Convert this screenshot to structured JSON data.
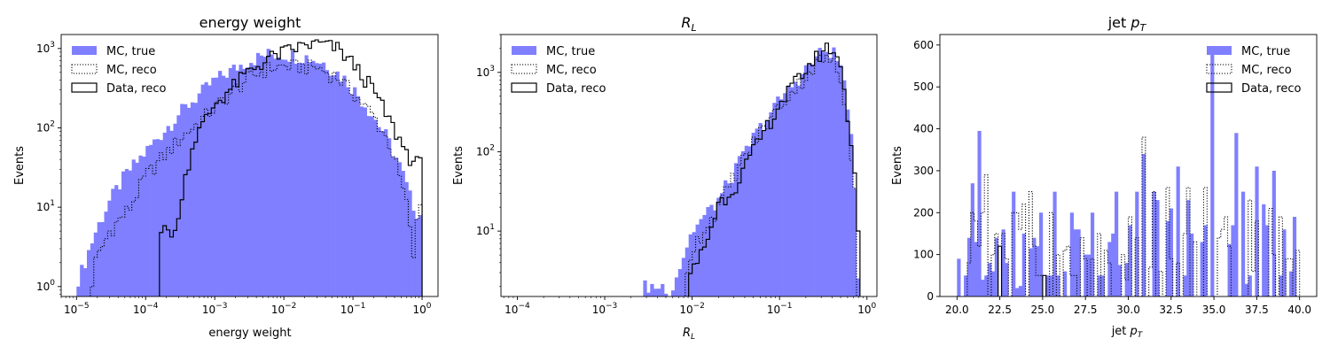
{
  "chart_data": [
    {
      "type": "histogram",
      "title": "energy weight",
      "xlabel": "energy weight",
      "ylabel": "Events",
      "xscale": "log",
      "yscale": "log",
      "xlim": [
        6e-06,
        1.7
      ],
      "ylim": [
        0.75,
        1500
      ],
      "xticks": [
        {
          "v": 1e-05,
          "b": "10",
          "e": "−5"
        },
        {
          "v": 0.0001,
          "b": "10",
          "e": "−4"
        },
        {
          "v": 0.001,
          "b": "10",
          "e": "−3"
        },
        {
          "v": 0.01,
          "b": "10",
          "e": "−2"
        },
        {
          "v": 0.1,
          "b": "10",
          "e": "−1"
        },
        {
          "v": 1,
          "b": "10",
          "e": "0"
        }
      ],
      "yticks": [
        {
          "v": 1,
          "b": "10",
          "e": "0"
        },
        {
          "v": 10,
          "b": "10",
          "e": "1"
        },
        {
          "v": 100,
          "b": "10",
          "e": "2"
        },
        {
          "v": 1000,
          "b": "10",
          "e": "3"
        }
      ],
      "legend": "upper-left",
      "grid": false,
      "bins": {
        "min": 1e-05,
        "max": 1.0,
        "n": 100,
        "scale": "log"
      },
      "series": [
        {
          "name": "MC, true",
          "style": "filled",
          "color": "#7f7fff",
          "anchors": [
            [
              1e-05,
              1
            ],
            [
              1.3e-05,
              2
            ],
            [
              1.9e-05,
              5
            ],
            [
              3e-05,
              12
            ],
            [
              5e-05,
              25
            ],
            [
              0.0001,
              50
            ],
            [
              0.0003,
              150
            ],
            [
              0.001,
              400
            ],
            [
              0.003,
              700
            ],
            [
              0.006,
              850
            ],
            [
              0.01,
              850
            ],
            [
              0.02,
              800
            ],
            [
              0.04,
              650
            ],
            [
              0.08,
              400
            ],
            [
              0.15,
              200
            ],
            [
              0.3,
              80
            ],
            [
              0.5,
              30
            ],
            [
              0.7,
              12
            ],
            [
              0.9,
              8
            ],
            [
              1,
              8
            ]
          ]
        },
        {
          "name": "MC, reco",
          "style": "dotted",
          "color": "#000000",
          "anchors": [
            [
              1.6e-05,
              1.5
            ],
            [
              3e-05,
              5
            ],
            [
              6e-05,
              10
            ],
            [
              0.0001,
              25
            ],
            [
              0.0003,
              70
            ],
            [
              0.001,
              180
            ],
            [
              0.003,
              420
            ],
            [
              0.006,
              560
            ],
            [
              0.01,
              600
            ],
            [
              0.03,
              580
            ],
            [
              0.06,
              430
            ],
            [
              0.1,
              280
            ],
            [
              0.2,
              140
            ],
            [
              0.35,
              60
            ],
            [
              0.5,
              20
            ],
            [
              0.65,
              8
            ],
            [
              0.75,
              2
            ],
            [
              0.85,
              8
            ],
            [
              1,
              15
            ]
          ]
        },
        {
          "name": "Data, reco",
          "style": "step",
          "color": "#000000",
          "anchors": [
            [
              0.000155,
              5
            ],
            [
              0.00029,
              5
            ],
            [
              0.00033,
              15
            ],
            [
              0.0005,
              70
            ],
            [
              0.001,
              200
            ],
            [
              0.003,
              500
            ],
            [
              0.006,
              750
            ],
            [
              0.01,
              900
            ],
            [
              0.02,
              1100
            ],
            [
              0.035,
              1150
            ],
            [
              0.06,
              1000
            ],
            [
              0.1,
              650
            ],
            [
              0.2,
              300
            ],
            [
              0.3,
              150
            ],
            [
              0.5,
              65
            ],
            [
              0.7,
              40
            ],
            [
              0.9,
              35
            ],
            [
              1,
              35
            ]
          ]
        }
      ]
    },
    {
      "type": "histogram",
      "title_base": "R",
      "title_sub": "L",
      "xlabel_base": "R",
      "xlabel_sub": "L",
      "ylabel": "Events",
      "xscale": "log",
      "yscale": "log",
      "xlim": [
        6.5e-05,
        1.3
      ],
      "ylim": [
        1.5,
        3000
      ],
      "xticks": [
        {
          "v": 0.0001,
          "b": "10",
          "e": "−4"
        },
        {
          "v": 0.001,
          "b": "10",
          "e": "−3"
        },
        {
          "v": 0.01,
          "b": "10",
          "e": "−2"
        },
        {
          "v": 0.1,
          "b": "10",
          "e": "−1"
        },
        {
          "v": 1,
          "b": "10",
          "e": "0"
        }
      ],
      "yticks": [
        {
          "v": 10,
          "b": "10",
          "e": "1"
        },
        {
          "v": 100,
          "b": "10",
          "e": "2"
        },
        {
          "v": 1000,
          "b": "10",
          "e": "3"
        }
      ],
      "legend": "upper-left",
      "grid": false,
      "bins": {
        "min": 0.0001,
        "max": 1.0,
        "n": 100,
        "scale": "log"
      },
      "series": [
        {
          "name": "MC, true",
          "style": "filled",
          "color": "#7f7fff",
          "anchors": [
            [
              0.00047,
              2
            ],
            [
              0.00052,
              0
            ],
            [
              0.0028,
              0
            ],
            [
              0.0029,
              2
            ],
            [
              0.004,
              2
            ],
            [
              0.006,
              2
            ],
            [
              0.008,
              5
            ],
            [
              0.01,
              10
            ],
            [
              0.02,
              25
            ],
            [
              0.03,
              55
            ],
            [
              0.05,
              150
            ],
            [
              0.1,
              450
            ],
            [
              0.2,
              1100
            ],
            [
              0.3,
              1800
            ],
            [
              0.4,
              1900
            ],
            [
              0.5,
              1200
            ],
            [
              0.6,
              450
            ],
            [
              0.7,
              70
            ],
            [
              0.8,
              2
            ]
          ]
        },
        {
          "name": "MC, reco",
          "style": "dotted",
          "color": "#000000",
          "anchors": [
            [
              0.0085,
              3
            ],
            [
              0.01,
              6
            ],
            [
              0.02,
              20
            ],
            [
              0.03,
              50
            ],
            [
              0.05,
              130
            ],
            [
              0.1,
              380
            ],
            [
              0.2,
              900
            ],
            [
              0.3,
              1500
            ],
            [
              0.4,
              1400
            ],
            [
              0.5,
              800
            ],
            [
              0.6,
              300
            ],
            [
              0.7,
              50
            ],
            [
              0.78,
              12
            ]
          ]
        },
        {
          "name": "Data, reco",
          "style": "step",
          "color": "#000000",
          "anchors": [
            [
              0.009,
              2
            ],
            [
              0.01,
              3
            ],
            [
              0.015,
              8
            ],
            [
              0.02,
              22
            ],
            [
              0.03,
              35
            ],
            [
              0.05,
              100
            ],
            [
              0.1,
              400
            ],
            [
              0.2,
              1100
            ],
            [
              0.3,
              1800
            ],
            [
              0.37,
              2100
            ],
            [
              0.45,
              1700
            ],
            [
              0.55,
              700
            ],
            [
              0.65,
              140
            ],
            [
              0.75,
              40
            ],
            [
              0.8,
              10
            ]
          ]
        }
      ]
    },
    {
      "type": "histogram",
      "title_base": "jet ",
      "title_var": "p",
      "title_sub": "T",
      "xlabel_base": "jet ",
      "xlabel_var": "p",
      "xlabel_sub": "T",
      "ylabel": "Events",
      "xscale": "linear",
      "yscale": "linear",
      "xlim": [
        19.0,
        41.0
      ],
      "ylim": [
        0,
        625
      ],
      "xticks": [
        {
          "v": 20.0,
          "t": "20.0"
        },
        {
          "v": 22.5,
          "t": "22.5"
        },
        {
          "v": 25.0,
          "t": "25.0"
        },
        {
          "v": 27.5,
          "t": "27.5"
        },
        {
          "v": 30.0,
          "t": "30.0"
        },
        {
          "v": 32.5,
          "t": "32.5"
        },
        {
          "v": 35.0,
          "t": "35.0"
        },
        {
          "v": 37.5,
          "t": "37.5"
        },
        {
          "v": 40.0,
          "t": "40.0"
        }
      ],
      "yticks": [
        {
          "v": 0,
          "t": "0"
        },
        {
          "v": 100,
          "t": "100"
        },
        {
          "v": 200,
          "t": "200"
        },
        {
          "v": 300,
          "t": "300"
        },
        {
          "v": 400,
          "t": "400"
        },
        {
          "v": 500,
          "t": "500"
        },
        {
          "v": 600,
          "t": "600"
        }
      ],
      "legend": "upper-right",
      "grid": false,
      "bins": {
        "min": 20.0,
        "max": 40.0,
        "n": 100,
        "scale": "linear"
      },
      "series": [
        {
          "name": "MC, true",
          "style": "filled",
          "color": "#7f7fff",
          "values": [
            90,
            0,
            50,
            140,
            270,
            130,
            395,
            40,
            50,
            80,
            60,
            140,
            0,
            160,
            80,
            0,
            250,
            20,
            25,
            150,
            0,
            115,
            140,
            120,
            200,
            0,
            50,
            50,
            250,
            50,
            0,
            60,
            0,
            200,
            160,
            160,
            0,
            100,
            100,
            200,
            0,
            50,
            50,
            0,
            130,
            150,
            250,
            75,
            0,
            80,
            170,
            0,
            250,
            0,
            340,
            0,
            0,
            250,
            230,
            0,
            0,
            180,
            210,
            0,
            310,
            0,
            50,
            230,
            150,
            0,
            0,
            130,
            170,
            0,
            590,
            0,
            0,
            0,
            0,
            125,
            170,
            390,
            0,
            250,
            30,
            50,
            0,
            310,
            0,
            220,
            170,
            0,
            300,
            0,
            50,
            160,
            0,
            60,
            190,
            0
          ]
        },
        {
          "name": "MC, reco",
          "style": "dotted",
          "color": "#000000",
          "values": [
            0,
            0,
            0,
            80,
            200,
            180,
            120,
            200,
            290,
            0,
            100,
            150,
            0,
            150,
            90,
            0,
            200,
            200,
            160,
            220,
            0,
            250,
            120,
            50,
            50,
            50,
            0,
            200,
            0,
            100,
            0,
            110,
            120,
            50,
            50,
            0,
            140,
            90,
            0,
            90,
            0,
            150,
            0,
            110,
            80,
            0,
            0,
            0,
            100,
            40,
            190,
            0,
            140,
            0,
            380,
            0,
            70,
            250,
            0,
            60,
            0,
            260,
            90,
            0,
            80,
            0,
            150,
            260,
            0,
            130,
            0,
            0,
            260,
            0,
            0,
            0,
            140,
            160,
            190,
            120,
            0,
            0,
            0,
            0,
            0,
            230,
            60,
            180,
            0,
            0,
            0,
            210,
            100,
            0,
            190,
            0,
            90,
            90,
            0,
            110
          ]
        },
        {
          "name": "Data, reco",
          "style": "step",
          "color": "#000000",
          "values": [
            0,
            0,
            0,
            0,
            0,
            0,
            0,
            0,
            0,
            0,
            0,
            0,
            120,
            0,
            0,
            0,
            0,
            0,
            0,
            0,
            0,
            0,
            0,
            0,
            0,
            50,
            0,
            0,
            0,
            0,
            0,
            0,
            0,
            0,
            0,
            0,
            0,
            0,
            0,
            0,
            0,
            0,
            0,
            0,
            0,
            0,
            0,
            0,
            0,
            0,
            0,
            0,
            0,
            0,
            0,
            0,
            0,
            0,
            0,
            0,
            0,
            0,
            0,
            0,
            0,
            0,
            0,
            0,
            0,
            0,
            0,
            0,
            0,
            0,
            0,
            0,
            0,
            0,
            0,
            0,
            0,
            0,
            0,
            0,
            0,
            0,
            0,
            0,
            0,
            0,
            0,
            0,
            0,
            0,
            0,
            0,
            0,
            0,
            0,
            0
          ]
        }
      ]
    }
  ]
}
